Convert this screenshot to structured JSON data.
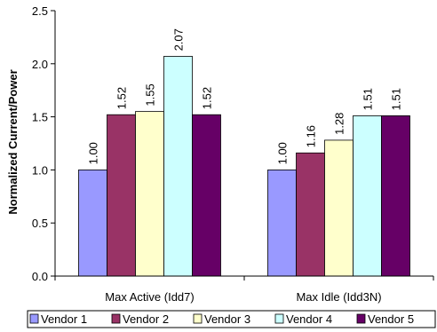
{
  "chart_data": {
    "type": "bar",
    "title": "",
    "xlabel": "",
    "ylabel": "Normalized Current/Power",
    "categories": [
      "Max Active (Idd7)",
      "Max Idle (Idd3N)"
    ],
    "series": [
      {
        "name": "Vendor 1",
        "values": [
          1.0,
          1.0
        ],
        "labels": [
          "1.00",
          "1.00"
        ],
        "color": "#9999FF"
      },
      {
        "name": "Vendor 2",
        "values": [
          1.52,
          1.16
        ],
        "labels": [
          "1.52",
          "1.16"
        ],
        "color": "#993366"
      },
      {
        "name": "Vendor 3",
        "values": [
          1.55,
          1.28
        ],
        "labels": [
          "1.55",
          "1.28"
        ],
        "color": "#FFFFCC"
      },
      {
        "name": "Vendor 4",
        "values": [
          2.07,
          1.51
        ],
        "labels": [
          "2.07",
          "1.51"
        ],
        "color": "#CCFFFF"
      },
      {
        "name": "Vendor 5",
        "values": [
          1.52,
          1.51
        ],
        "labels": [
          "1.52",
          "1.51"
        ],
        "color": "#660066"
      }
    ],
    "ylim": [
      0,
      2.5
    ],
    "yticks": [
      "0.0",
      "0.5",
      "1.0",
      "1.5",
      "2.0",
      "2.5"
    ],
    "grid": false,
    "legend_position": "bottom"
  }
}
